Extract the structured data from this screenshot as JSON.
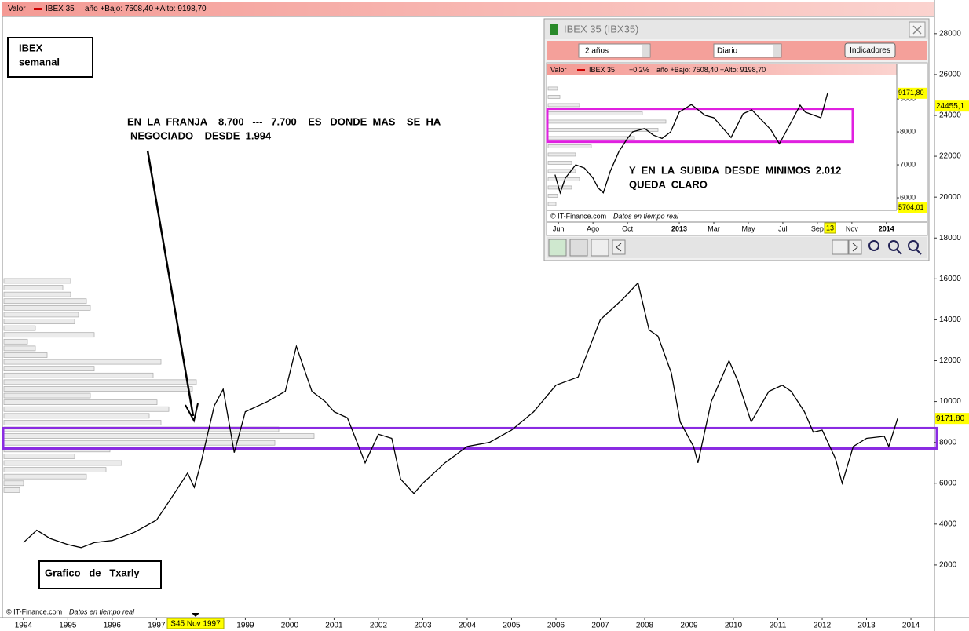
{
  "chart_data": [
    {
      "type": "line",
      "header": {
        "label": "Valor",
        "symbol": "IBEX 35",
        "range": "año +Bajo: 7508,40 +Alto: 9198,70"
      },
      "title_lines": [
        "IBEX",
        "semanal"
      ],
      "annotations": [
        "EN  LA  FRANJA    8.700   ---   7.700    ES   DONDE  MAS    SE  HA",
        "NEGOCIADO    DESDE  1.994"
      ],
      "author": "Grafico   de   Txarly",
      "source": "© IT-Finance.com",
      "source_note": "Datos en tiempo real",
      "cursor_label": "S45 Nov 1997",
      "x": [
        1994.0,
        1994.3,
        1994.6,
        1995.0,
        1995.3,
        1995.6,
        1996.0,
        1996.5,
        1997.0,
        1997.4,
        1997.7,
        1997.85,
        1998.0,
        1998.3,
        1998.5,
        1998.75,
        1999.0,
        1999.5,
        1999.9,
        2000.15,
        2000.5,
        2000.8,
        2001.0,
        2001.3,
        2001.7,
        2002.0,
        2002.3,
        2002.5,
        2002.8,
        2003.0,
        2003.5,
        2004.0,
        2004.5,
        2005.0,
        2005.5,
        2006.0,
        2006.5,
        2007.0,
        2007.5,
        2007.85,
        2008.1,
        2008.3,
        2008.6,
        2008.8,
        2009.1,
        2009.2,
        2009.5,
        2009.9,
        2010.1,
        2010.4,
        2010.8,
        2011.1,
        2011.3,
        2011.6,
        2011.8,
        2012.0,
        2012.3,
        2012.45,
        2012.7,
        2013.0,
        2013.4,
        2013.5,
        2013.7
      ],
      "values": [
        3100,
        3700,
        3300,
        3000,
        2850,
        3100,
        3200,
        3600,
        4200,
        5500,
        6500,
        5800,
        7000,
        9800,
        10600,
        7500,
        9500,
        10000,
        10500,
        12700,
        10500,
        10000,
        9500,
        9200,
        7000,
        8400,
        8200,
        6200,
        5500,
        6000,
        7000,
        7800,
        8000,
        8600,
        9500,
        10800,
        11200,
        14000,
        15000,
        15800,
        13500,
        13200,
        11400,
        9000,
        7800,
        7000,
        10000,
        12000,
        11000,
        9000,
        10500,
        10800,
        10500,
        9500,
        8500,
        8600,
        7200,
        6000,
        7800,
        8200,
        8300,
        7800,
        9171.8
      ],
      "color": "#000000",
      "xlim": [
        1993.56,
        2014.53
      ],
      "xticks": [
        1994,
        1995,
        1996,
        1997,
        1998,
        1999,
        2000,
        2001,
        2002,
        2003,
        2004,
        2005,
        2006,
        2007,
        2008,
        2009,
        2010,
        2011,
        2012,
        2013,
        2014
      ],
      "ylim": [
        0,
        28800
      ],
      "yticks": [
        2000,
        4000,
        6000,
        8000,
        10000,
        12000,
        14000,
        16000,
        18000,
        20000,
        22000,
        24000,
        26000,
        28000
      ],
      "band": [
        7700,
        8700
      ],
      "band_color": "#8a2be2",
      "profile": {
        "prices": [
          5650,
          5980,
          6310,
          6640,
          6970,
          7300,
          7630,
          7960,
          8290,
          8620,
          8950,
          9280,
          9610,
          9940,
          10270,
          10600,
          10930,
          11260,
          11590,
          11920,
          12250,
          12580,
          12910,
          13240,
          13570,
          13900,
          14230,
          14560,
          14890,
          15220,
          15550,
          15880
        ],
        "volumes": [
          20,
          25,
          105,
          130,
          150,
          90,
          135,
          345,
          395,
          350,
          200,
          185,
          210,
          195,
          110,
          240,
          245,
          190,
          115,
          200,
          55,
          40,
          30,
          115,
          40,
          90,
          95,
          110,
          105,
          85,
          75,
          85
        ]
      },
      "price_tags": [
        {
          "value": 9171.8,
          "label": "9171,80"
        },
        {
          "value": 24455.1,
          "label": "24455,1"
        }
      ]
    },
    {
      "type": "line",
      "window_title": "IBEX 35 (IBX35)",
      "controls": [
        "2 años",
        "Diario",
        "Indicadores"
      ],
      "header": {
        "label": "Valor",
        "symbol": "IBEX 35",
        "change": "+0,2%",
        "range": "año +Bajo: 7508,40 +Alto: 9198,70"
      },
      "annotations": [
        "Y  EN  LA  SUBIDA  DESDE  MINIMOS  2.012",
        "QUEDA  CLARO"
      ],
      "source": "© IT-Finance.com",
      "source_note": "Datos en tiempo real",
      "cursor_label": "13",
      "x": [
        -0.2,
        0.1,
        0.4,
        1.0,
        1.5,
        2.0,
        2.3,
        2.6,
        3.0,
        3.5,
        4.0,
        4.3,
        5.0,
        5.5,
        6.0,
        6.5,
        7.0,
        7.7,
        8.5,
        9.0,
        10.0,
        10.7,
        11.2,
        12.3,
        12.8,
        13.5,
        14.0,
        14.3,
        15.2,
        15.6
      ],
      "values": [
        6700,
        6150,
        6600,
        7000,
        6900,
        6600,
        6300,
        6150,
        6800,
        7400,
        7800,
        8000,
        8100,
        7900,
        7800,
        8000,
        8600,
        8830,
        8500,
        8430,
        7830,
        8550,
        8670,
        8070,
        7640,
        8310,
        8810,
        8600,
        8430,
        9190
      ],
      "color": "#000000",
      "xlim": [
        -0.6,
        19.6
      ],
      "xticks": [
        {
          "value": 0,
          "label": "Jun"
        },
        {
          "value": 2,
          "label": "Ago"
        },
        {
          "value": 4,
          "label": "Oct"
        },
        {
          "value": 7,
          "label": "2013"
        },
        {
          "value": 9,
          "label": "Mar"
        },
        {
          "value": 11,
          "label": "May"
        },
        {
          "value": 13,
          "label": "Jul"
        },
        {
          "value": 15,
          "label": "Sep"
        },
        {
          "value": 17,
          "label": "Nov"
        },
        {
          "value": 19,
          "label": "2014"
        }
      ],
      "ylim": [
        5620,
        9620
      ],
      "yticks": [
        6000,
        7000,
        8000,
        9000
      ],
      "band": [
        7700,
        8700
      ],
      "band_color": "#e020e0",
      "profile": {
        "prices": [
          5800,
          6050,
          6300,
          6550,
          6800,
          7050,
          7300,
          7550,
          7800,
          8050,
          8300,
          8550,
          8800,
          9050,
          9300
        ],
        "volumes": [
          10,
          12,
          30,
          40,
          35,
          30,
          35,
          55,
          110,
          140,
          150,
          120,
          40,
          15,
          12
        ]
      },
      "price_tags": [
        {
          "value": 9171.8,
          "label": "9171,80"
        },
        {
          "value": 5704.01,
          "label": "5704,01"
        }
      ]
    }
  ]
}
